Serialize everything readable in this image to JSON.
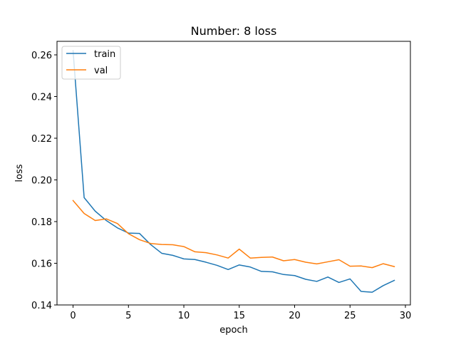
{
  "chart_data": {
    "type": "line",
    "title": "Number: 8 loss",
    "xlabel": "epoch",
    "ylabel": "loss",
    "xlim": [
      -1.45,
      30.45
    ],
    "ylim": [
      0.14,
      0.2665
    ],
    "xticks": [
      0,
      5,
      10,
      15,
      20,
      25,
      30
    ],
    "yticks": [
      0.14,
      0.16,
      0.18,
      0.2,
      0.22,
      0.24,
      0.26
    ],
    "ytick_labels": [
      "0.14",
      "0.16",
      "0.18",
      "0.20",
      "0.22",
      "0.24",
      "0.26"
    ],
    "legend_placement": "upper-left",
    "grid": false,
    "x": [
      0,
      1,
      2,
      3,
      4,
      5,
      6,
      7,
      8,
      9,
      10,
      11,
      12,
      13,
      14,
      15,
      16,
      17,
      18,
      19,
      20,
      21,
      22,
      23,
      24,
      25,
      26,
      27,
      28,
      29
    ],
    "series": [
      {
        "name": "train",
        "color": "#1f77b4",
        "values": [
          0.262,
          0.1915,
          0.185,
          0.1805,
          0.177,
          0.1745,
          0.1743,
          0.169,
          0.1648,
          0.1638,
          0.1621,
          0.1618,
          0.1605,
          0.159,
          0.157,
          0.1592,
          0.1582,
          0.1561,
          0.1559,
          0.1546,
          0.1541,
          0.1523,
          0.1513,
          0.1534,
          0.1508,
          0.1525,
          0.1465,
          0.1461,
          0.1493,
          0.1518
        ]
      },
      {
        "name": "val",
        "color": "#ff7f0e",
        "values": [
          0.1901,
          0.1839,
          0.1805,
          0.1813,
          0.1791,
          0.1742,
          0.1713,
          0.1695,
          0.169,
          0.1689,
          0.168,
          0.1655,
          0.1651,
          0.164,
          0.1625,
          0.1668,
          0.1625,
          0.1628,
          0.163,
          0.1612,
          0.1618,
          0.1605,
          0.1597,
          0.1607,
          0.1617,
          0.1586,
          0.1587,
          0.1579,
          0.1598,
          0.1584
        ]
      }
    ]
  }
}
